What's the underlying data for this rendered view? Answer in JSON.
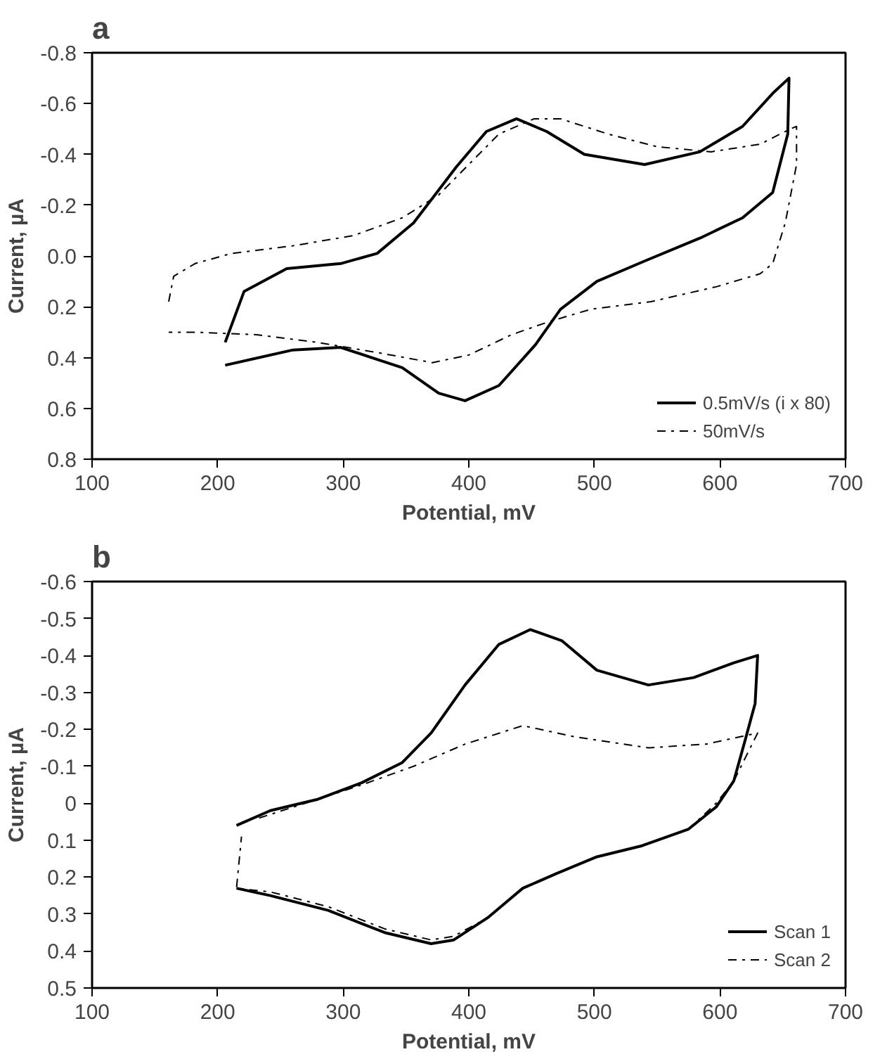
{
  "chart_data": [
    {
      "type": "line",
      "title": "a",
      "xlabel": "Potential, mV",
      "ylabel": "Current, µA",
      "xlim": [
        100,
        700
      ],
      "xticks": [
        100,
        200,
        300,
        400,
        500,
        600,
        700
      ],
      "ylim": [
        0.8,
        -0.8
      ],
      "yticks": [
        -0.8,
        -0.6,
        -0.4,
        -0.2,
        {
          "value": 0,
          "label": "0.0"
        },
        0.2,
        0.4,
        0.6,
        0.8
      ],
      "grid": false,
      "legend": "bottom right",
      "marker": "none",
      "series": [
        {
          "name": "0.5mV/s (i x 80)",
          "color": "#000000",
          "line_style": "solid",
          "x": [
            206,
            221,
            255,
            298,
            327,
            356,
            390,
            414,
            438,
            462,
            492,
            540,
            584,
            618,
            642,
            655,
            654,
            642,
            618,
            584,
            540,
            502,
            473,
            453,
            424,
            397,
            376,
            347,
            298,
            260,
            206
          ],
          "values": [
            0.34,
            0.14,
            0.05,
            0.03,
            -0.01,
            -0.13,
            -0.35,
            -0.49,
            -0.54,
            -0.49,
            -0.4,
            -0.36,
            -0.41,
            -0.51,
            -0.64,
            -0.7,
            -0.48,
            -0.25,
            -0.15,
            -0.07,
            0.02,
            0.1,
            0.21,
            0.35,
            0.51,
            0.57,
            0.54,
            0.44,
            0.36,
            0.37,
            0.43
          ]
        },
        {
          "name": "50mV/s",
          "color": "#000000",
          "line_style": "dashdot",
          "x": [
            161,
            165,
            182,
            211,
            260,
            308,
            347,
            376,
            400,
            424,
            452,
            473,
            511,
            550,
            593,
            632,
            656,
            661,
            661,
            652,
            642,
            632,
            598,
            545,
            497,
            463,
            434,
            400,
            371,
            327,
            279,
            231,
            182,
            161
          ],
          "values": [
            0.18,
            0.08,
            0.03,
            -0.01,
            -0.04,
            -0.08,
            -0.15,
            -0.24,
            -0.36,
            -0.48,
            -0.54,
            -0.54,
            -0.48,
            -0.43,
            -0.41,
            -0.44,
            -0.5,
            -0.51,
            -0.36,
            -0.13,
            0.03,
            0.07,
            0.12,
            0.18,
            0.21,
            0.26,
            0.31,
            0.39,
            0.42,
            0.38,
            0.34,
            0.31,
            0.3,
            0.3
          ]
        }
      ]
    },
    {
      "type": "line",
      "title": "b",
      "xlabel": "Potential, mV",
      "ylabel": "Current, µA",
      "xlim": [
        100,
        700
      ],
      "xticks": [
        100,
        200,
        300,
        400,
        500,
        600,
        700
      ],
      "ylim": [
        0.5,
        -0.6
      ],
      "yticks": [
        -0.6,
        -0.5,
        -0.4,
        -0.3,
        -0.2,
        -0.1,
        0,
        0.1,
        0.2,
        0.3,
        0.4,
        0.5
      ],
      "grid": false,
      "legend": "bottom right",
      "marker": "none",
      "series": [
        {
          "name": "Scan 1",
          "color": "#000000",
          "line_style": "solid",
          "x": [
            215,
            242,
            279,
            315,
            347,
            370,
            397,
            424,
            449,
            474,
            502,
            543,
            579,
            611,
            630,
            628,
            620,
            611,
            597,
            575,
            538,
            502,
            470,
            443,
            415,
            388,
            370,
            333,
            288,
            242,
            215
          ],
          "values": [
            0.06,
            0.02,
            -0.01,
            -0.056,
            -0.11,
            -0.19,
            -0.32,
            -0.43,
            -0.47,
            -0.44,
            -0.36,
            -0.32,
            -0.34,
            -0.38,
            -0.4,
            -0.27,
            -0.17,
            -0.06,
            0.01,
            0.07,
            0.115,
            0.145,
            0.19,
            0.23,
            0.31,
            0.37,
            0.38,
            0.35,
            0.29,
            0.25,
            0.23
          ]
        },
        {
          "name": "Scan 2",
          "color": "#000000",
          "line_style": "dashdot",
          "x": [
            233,
            279,
            315,
            356,
            397,
            443,
            484,
            543,
            589,
            630,
            611,
            597,
            575,
            538,
            502,
            470,
            443,
            415,
            388,
            370,
            333,
            288,
            242,
            215,
            219
          ],
          "values": [
            0.04,
            -0.01,
            -0.05,
            -0.1,
            -0.16,
            -0.21,
            -0.18,
            -0.15,
            -0.16,
            -0.19,
            -0.06,
            0.0,
            0.07,
            0.115,
            0.145,
            0.19,
            0.23,
            0.31,
            0.36,
            0.37,
            0.34,
            0.28,
            0.24,
            0.23,
            0.09
          ]
        }
      ]
    }
  ]
}
